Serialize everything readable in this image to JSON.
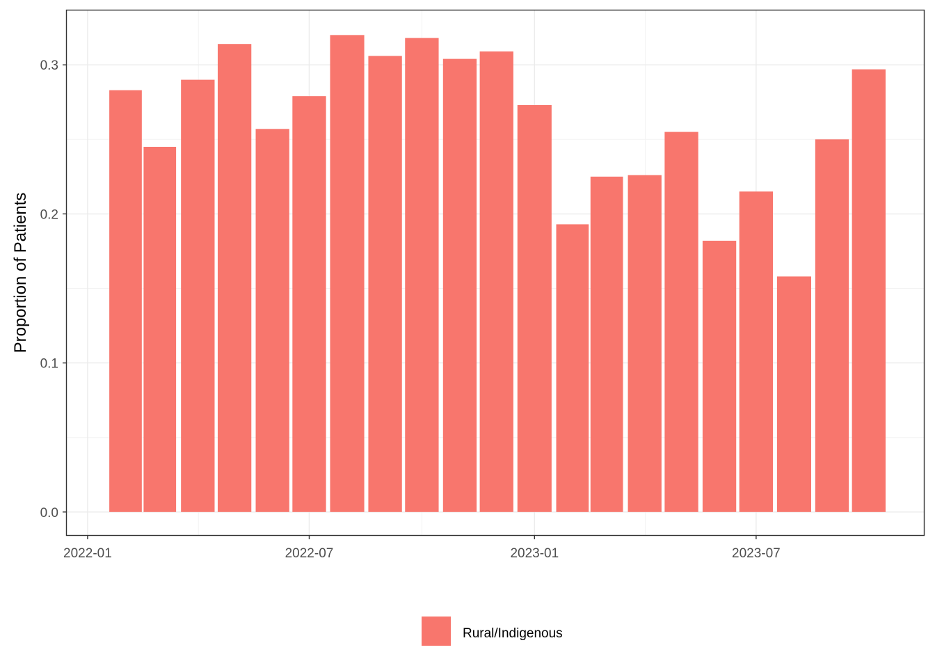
{
  "chart_data": {
    "type": "bar",
    "ylabel": "Proportion of Patients",
    "xlabel": "",
    "x_axis_type": "date-monthly",
    "categories": [
      "2022-02",
      "2022-03",
      "2022-04",
      "2022-05",
      "2022-06",
      "2022-07",
      "2022-08",
      "2022-09",
      "2022-10",
      "2022-11",
      "2022-12",
      "2023-01",
      "2023-02",
      "2023-03",
      "2023-04",
      "2023-05",
      "2023-06",
      "2023-07",
      "2023-08",
      "2023-09",
      "2023-10"
    ],
    "series": [
      {
        "name": "Rural/Indigenous",
        "color": "#F8766D",
        "values": [
          0.283,
          0.245,
          0.29,
          0.314,
          0.257,
          0.279,
          0.32,
          0.306,
          0.318,
          0.304,
          0.309,
          0.273,
          0.193,
          0.225,
          0.226,
          0.255,
          0.182,
          0.215,
          0.158,
          0.25,
          0.297
        ]
      }
    ],
    "x_ticks": [
      "2022-01",
      "2022-07",
      "2023-01",
      "2023-07"
    ],
    "y_ticks": [
      "0.0",
      "0.1",
      "0.2",
      "0.3"
    ],
    "ylim": [
      -0.0155,
      0.3365
    ],
    "xlim": [
      "2021-12-15",
      "2023-11-15"
    ],
    "grid": true,
    "legend_position": "bottom"
  },
  "legend": {
    "label": "Rural/Indigenous"
  }
}
